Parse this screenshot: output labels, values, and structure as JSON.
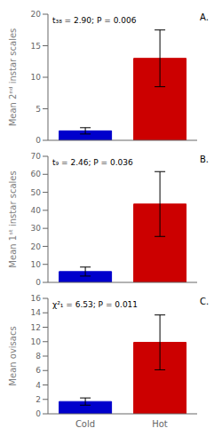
{
  "chart_data": [
    {
      "type": "bar",
      "title": "A.",
      "ylabel": "Mean 2ⁿᵈ instar scales",
      "annotations": [
        "t₃₈ = 2.90; P = 0.006"
      ],
      "categories": [
        null,
        null
      ],
      "values": [
        1.5,
        13.0
      ],
      "errors": [
        0.5,
        4.5
      ],
      "colors": [
        "#0000cc",
        "#cc0000"
      ],
      "ylim": [
        0,
        20
      ],
      "yticks": [
        0,
        5,
        10,
        15,
        20
      ],
      "grid": false
    },
    {
      "type": "bar",
      "title": "B.",
      "ylabel": "Mean 1ˢᵗ instar scales",
      "annotations": [
        "t₉ = 2.46; P = 0.036"
      ],
      "categories": [
        null,
        null
      ],
      "values": [
        6.0,
        43.5
      ],
      "errors": [
        2.5,
        18.0
      ],
      "colors": [
        "#0000cc",
        "#cc0000"
      ],
      "ylim": [
        0,
        70
      ],
      "yticks": [
        0,
        10,
        20,
        30,
        40,
        50,
        60,
        70
      ],
      "grid": false
    },
    {
      "type": "bar",
      "title": "C.",
      "ylabel": "Mean ovisacs",
      "annotations": [
        "χ²₁ = 6.53; P = 0.011"
      ],
      "categories": [
        "Cold",
        "Hot"
      ],
      "values": [
        1.7,
        9.9
      ],
      "errors": [
        0.5,
        3.8
      ],
      "colors": [
        "#0000cc",
        "#cc0000"
      ],
      "ylim": [
        0,
        16
      ],
      "yticks": [
        0,
        2,
        4,
        6,
        8,
        10,
        12,
        14,
        16
      ],
      "grid": false
    }
  ]
}
